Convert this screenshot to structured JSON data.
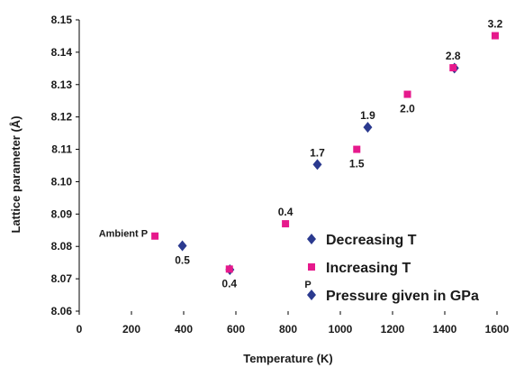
{
  "chart_data": {
    "type": "scatter",
    "xlabel": "Temperature (K)",
    "ylabel": "Lattice parameter (Å)",
    "xlim": [
      0,
      1600
    ],
    "ylim": [
      8.06,
      8.15
    ],
    "xticks": [
      0,
      200,
      400,
      600,
      800,
      1000,
      1200,
      1400,
      1600
    ],
    "yticks": [
      8.06,
      8.07,
      8.08,
      8.09,
      8.1,
      8.11,
      8.12,
      8.13,
      8.14,
      8.15
    ],
    "ytick_labels": [
      "8.06",
      "8.07",
      "8.08",
      "8.09",
      "8.10",
      "8.11",
      "8.12",
      "8.13",
      "8.14",
      "8.15"
    ],
    "grid": false,
    "legend_position": "right",
    "colors": {
      "decreasing": "#2b3a8f",
      "increasing": "#e6198c",
      "text": "#1a1a1a"
    },
    "series": [
      {
        "name": "Decreasing T",
        "marker": "diamond",
        "points": [
          {
            "x": 395,
            "y": 8.0802
          },
          {
            "x": 577,
            "y": 8.0728
          },
          {
            "x": 912,
            "y": 8.1053
          },
          {
            "x": 1105,
            "y": 8.1168
          },
          {
            "x": 1437,
            "y": 8.1351
          }
        ]
      },
      {
        "name": "Increasing T",
        "marker": "square",
        "points": [
          {
            "x": 290,
            "y": 8.0832
          },
          {
            "x": 575,
            "y": 8.073
          },
          {
            "x": 790,
            "y": 8.087
          },
          {
            "x": 1063,
            "y": 8.11
          },
          {
            "x": 1257,
            "y": 8.127
          },
          {
            "x": 1432,
            "y": 8.1352
          },
          {
            "x": 1593,
            "y": 8.1451
          }
        ]
      }
    ],
    "annotations": [
      {
        "text": "Ambient P",
        "x": 290,
        "y": 8.0832,
        "pos": "left"
      },
      {
        "text": "0.5",
        "x": 395,
        "y": 8.0802,
        "pos": "below"
      },
      {
        "text": "0.4",
        "x": 575,
        "y": 8.073,
        "pos": "below"
      },
      {
        "text": "0.4",
        "x": 790,
        "y": 8.087,
        "pos": "above"
      },
      {
        "text": "1.7",
        "x": 912,
        "y": 8.1053,
        "pos": "above"
      },
      {
        "text": "1.5",
        "x": 1063,
        "y": 8.11,
        "pos": "below"
      },
      {
        "text": "1.9",
        "x": 1105,
        "y": 8.1168,
        "pos": "above"
      },
      {
        "text": "2.0",
        "x": 1257,
        "y": 8.127,
        "pos": "below"
      },
      {
        "text": "2.8",
        "x": 1432,
        "y": 8.1352,
        "pos": "above"
      },
      {
        "text": "3.2",
        "x": 1593,
        "y": 8.1451,
        "pos": "above"
      }
    ],
    "legend": [
      {
        "label": "Decreasing T",
        "marker": "diamond"
      },
      {
        "label": "Increasing T",
        "marker": "square"
      },
      {
        "label": "Pressure given in GPa",
        "marker": "diamond",
        "prefix": "P"
      }
    ]
  }
}
